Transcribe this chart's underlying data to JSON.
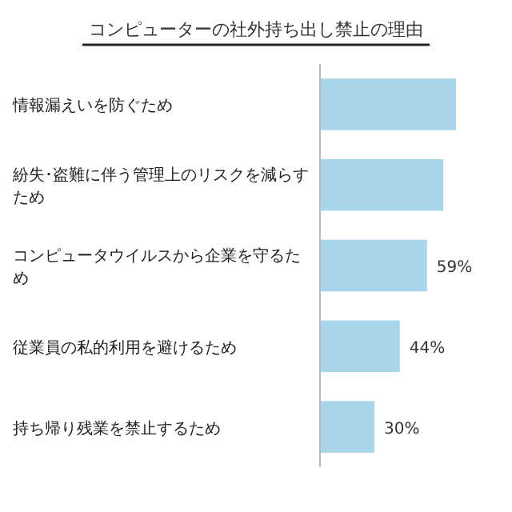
{
  "chart_data": {
    "type": "bar",
    "orientation": "horizontal",
    "title": "コンピューターの社外持ち出し禁止の理由",
    "categories": [
      "情報漏えいを防ぐため",
      "紛失･盗難に伴う管理上のリスクを減らすため",
      "コンピュータウイルスから企業を守るため",
      "従業員の私的利用を避けるため",
      "持ち帰り残業を禁止するため"
    ],
    "values": [
      75,
      68,
      59,
      44,
      30
    ],
    "value_labels": [
      null,
      null,
      "59%",
      "44%",
      "30%"
    ],
    "color": "#a9d5ea"
  }
}
